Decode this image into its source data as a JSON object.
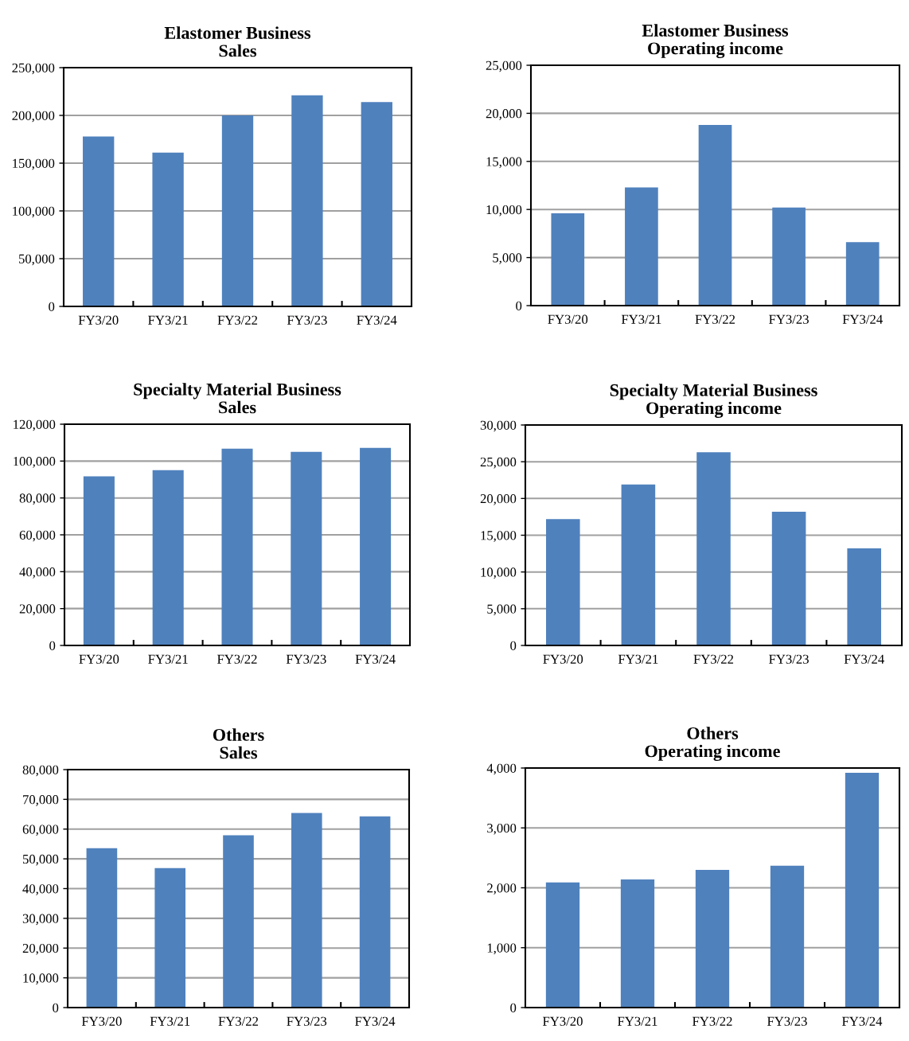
{
  "chart_data": [
    {
      "type": "bar",
      "title": "Elastomer Business\nSales",
      "categories": [
        "FY3/20",
        "FY3/21",
        "FY3/22",
        "FY3/23",
        "FY3/24"
      ],
      "values": [
        178000,
        161000,
        200000,
        221000,
        214000
      ],
      "color": "#4f81bd",
      "ylim": [
        0,
        250000
      ],
      "yticks": [
        {
          "value": 0,
          "label": "0"
        },
        {
          "value": 50000,
          "label": "50,000"
        },
        {
          "value": 100000,
          "label": "100,000"
        },
        {
          "value": 150000,
          "label": "150,000"
        },
        {
          "value": 200000,
          "label": "200,000"
        },
        {
          "value": 250000,
          "label": "250,000"
        }
      ],
      "grid": "y"
    },
    {
      "type": "bar",
      "title": "Elastomer Business\nOperating income",
      "categories": [
        "FY3/20",
        "FY3/21",
        "FY3/22",
        "FY3/23",
        "FY3/24"
      ],
      "values": [
        9600,
        12300,
        18800,
        10200,
        6600
      ],
      "color": "#4f81bd",
      "ylim": [
        0,
        25000
      ],
      "yticks": [
        {
          "value": 0,
          "label": "0"
        },
        {
          "value": 5000,
          "label": "5,000"
        },
        {
          "value": 10000,
          "label": "10,000"
        },
        {
          "value": 15000,
          "label": "15,000"
        },
        {
          "value": 20000,
          "label": "20,000"
        },
        {
          "value": 25000,
          "label": "25,000"
        }
      ],
      "grid": "y"
    },
    {
      "type": "bar",
      "title": "Specialty Material Business\nSales",
      "categories": [
        "FY3/20",
        "FY3/21",
        "FY3/22",
        "FY3/23",
        "FY3/24"
      ],
      "values": [
        91700,
        95100,
        106700,
        105000,
        107200
      ],
      "color": "#4f81bd",
      "ylim": [
        0,
        120000
      ],
      "yticks": [
        {
          "value": 0,
          "label": "0"
        },
        {
          "value": 20000,
          "label": "20,000"
        },
        {
          "value": 40000,
          "label": "40,000"
        },
        {
          "value": 60000,
          "label": "60,000"
        },
        {
          "value": 80000,
          "label": "80,000"
        },
        {
          "value": 100000,
          "label": "100,000"
        },
        {
          "value": 120000,
          "label": "120,000"
        }
      ],
      "grid": "y"
    },
    {
      "type": "bar",
      "title": "Specialty Material Business\nOperating income",
      "categories": [
        "FY3/20",
        "FY3/21",
        "FY3/22",
        "FY3/23",
        "FY3/24"
      ],
      "values": [
        17200,
        21900,
        26300,
        18200,
        13200
      ],
      "color": "#4f81bd",
      "ylim": [
        0,
        30000
      ],
      "yticks": [
        {
          "value": 0,
          "label": "0"
        },
        {
          "value": 5000,
          "label": "5,000"
        },
        {
          "value": 10000,
          "label": "10,000"
        },
        {
          "value": 15000,
          "label": "15,000"
        },
        {
          "value": 20000,
          "label": "20,000"
        },
        {
          "value": 25000,
          "label": "25,000"
        },
        {
          "value": 30000,
          "label": "30,000"
        }
      ],
      "grid": "y"
    },
    {
      "type": "bar",
      "title": "Others\nSales",
      "categories": [
        "FY3/20",
        "FY3/21",
        "FY3/22",
        "FY3/23",
        "FY3/24"
      ],
      "values": [
        53600,
        46900,
        57900,
        65400,
        64300
      ],
      "color": "#4f81bd",
      "ylim": [
        0,
        80000
      ],
      "yticks": [
        {
          "value": 0,
          "label": "0"
        },
        {
          "value": 10000,
          "label": "10,000"
        },
        {
          "value": 20000,
          "label": "20,000"
        },
        {
          "value": 30000,
          "label": "30,000"
        },
        {
          "value": 40000,
          "label": "40,000"
        },
        {
          "value": 50000,
          "label": "50,000"
        },
        {
          "value": 60000,
          "label": "60,000"
        },
        {
          "value": 70000,
          "label": "70,000"
        },
        {
          "value": 80000,
          "label": "80,000"
        }
      ],
      "grid": "y"
    },
    {
      "type": "bar",
      "title": "Others\nOperating income",
      "categories": [
        "FY3/20",
        "FY3/21",
        "FY3/22",
        "FY3/23",
        "FY3/24"
      ],
      "values": [
        2090,
        2140,
        2300,
        2370,
        3920
      ],
      "color": "#4f81bd",
      "ylim": [
        0,
        4000
      ],
      "yticks": [
        {
          "value": 0,
          "label": "0"
        },
        {
          "value": 1000,
          "label": "1,000"
        },
        {
          "value": 2000,
          "label": "2,000"
        },
        {
          "value": 3000,
          "label": "3,000"
        },
        {
          "value": 4000,
          "label": "4,000"
        }
      ],
      "grid": "y"
    }
  ]
}
